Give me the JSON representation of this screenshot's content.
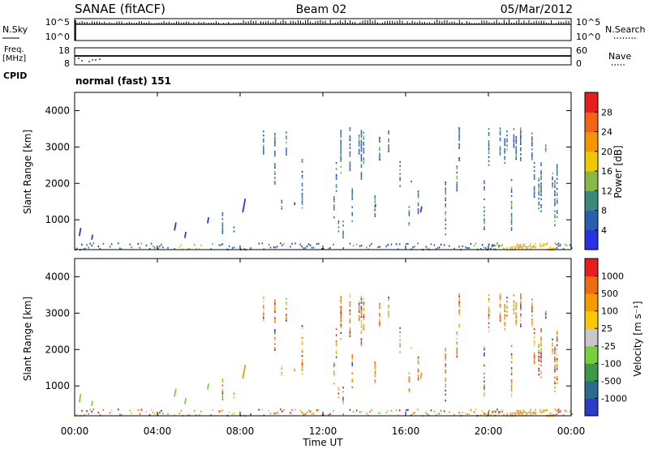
{
  "header": {
    "station": "SANAE (fitACF)",
    "beam": "Beam 02",
    "date": "05/Mar/2012"
  },
  "noise_panel": {
    "left_label": "N.Sky",
    "left_ticks": [
      "10^5",
      "10^0"
    ],
    "right_ticks": [
      "10^5",
      "10^0"
    ],
    "right_label": "N.Search",
    "right_style": "dotted"
  },
  "freq_panel": {
    "left_label_line1": "Freq.",
    "left_label_line2": "[MHz]",
    "left_ticks": [
      "18",
      "8"
    ],
    "right_ticks": [
      "60",
      "0"
    ],
    "right_label": "Nave",
    "right_style": "dotted"
  },
  "cpid": {
    "label": "CPID",
    "value": "normal (fast) 151"
  },
  "chart_data": [
    {
      "type": "heatmap",
      "title": "",
      "xlabel": "",
      "ylabel": "Slant Range [km]",
      "x_range_hours": [
        0,
        24
      ],
      "ylim": [
        180,
        4500
      ],
      "y_ticks": [
        "1000",
        "2000",
        "3000",
        "4000"
      ],
      "colorbar": {
        "label": "Power [dB]",
        "ticks": [
          "4",
          "8",
          "12",
          "16",
          "20",
          "24",
          "28"
        ],
        "range": [
          0,
          30
        ],
        "colors": [
          "#2832e0",
          "#2a5fb0",
          "#3a8a78",
          "#8ab848",
          "#f0c800",
          "#f59600",
          "#f06414",
          "#e81e1e"
        ]
      }
    },
    {
      "type": "heatmap",
      "title": "",
      "xlabel": "Time UT",
      "ylabel": "Slant Range [km]",
      "x_range_hours": [
        0,
        24
      ],
      "x_ticks": [
        "00:00",
        "04:00",
        "08:00",
        "12:00",
        "16:00",
        "20:00",
        "00:00"
      ],
      "ylim": [
        180,
        4500
      ],
      "y_ticks": [
        "1000",
        "2000",
        "3000",
        "4000"
      ],
      "colorbar": {
        "label": "Velocity [m s⁻¹]",
        "ticks": [
          "1000",
          "500",
          "100",
          "25",
          "-25",
          "-100",
          "-500",
          "-1000"
        ],
        "colors": [
          "#2a3cc8",
          "#2c6c8a",
          "#3a9a46",
          "#78d040",
          "#c8c8c8",
          "#f8c800",
          "#f59a00",
          "#f06a10",
          "#e81e1e"
        ]
      }
    }
  ]
}
